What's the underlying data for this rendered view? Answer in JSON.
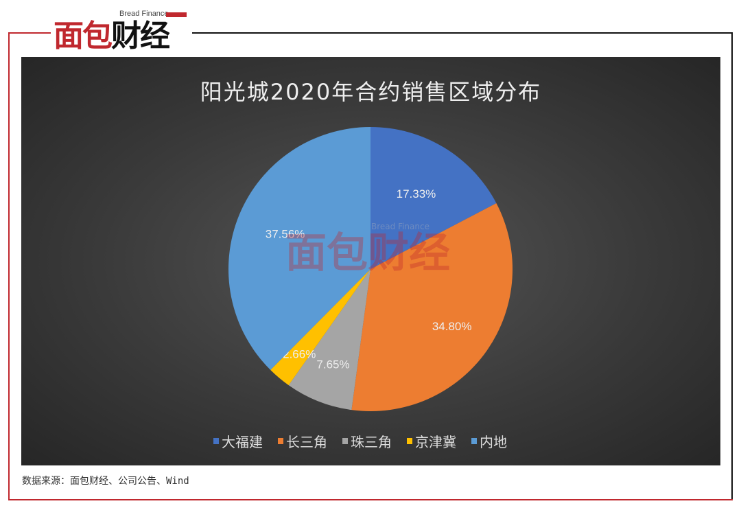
{
  "logo": {
    "en": "Bread Finance",
    "cn_red": "面包",
    "cn_black": "财经"
  },
  "source": "数据来源：面包财经、公司公告、Wind",
  "colors": {
    "大福建": "#4472c4",
    "长三角": "#ed7d31",
    "珠三角": "#a5a5a5",
    "京津冀": "#ffc000",
    "内地": "#5b9bd5"
  },
  "chart_data": {
    "type": "pie",
    "title": "阳光城2020年合约销售区域分布",
    "categories": [
      "大福建",
      "长三角",
      "珠三角",
      "京津冀",
      "内地"
    ],
    "values": [
      17.33,
      34.8,
      7.65,
      2.66,
      37.56
    ],
    "labels": [
      "17.33%",
      "34.80%",
      "7.65%",
      "2.66%",
      "37.56%"
    ],
    "legend": "bottom"
  }
}
